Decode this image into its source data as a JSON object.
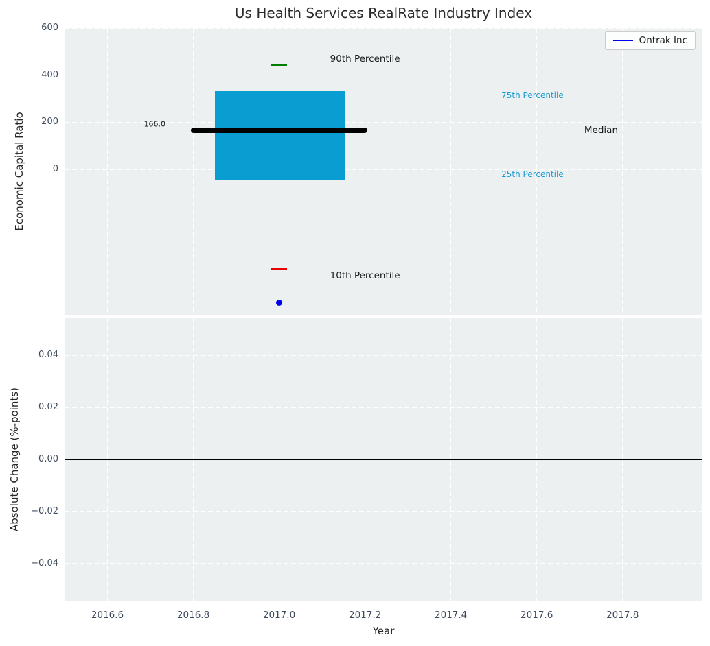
{
  "title": "Us Health Services RealRate Industry Index",
  "chart_data": {
    "type": "box",
    "title": "Us Health Services RealRate Industry Index",
    "xlabel": "Year",
    "background": "#ecf0f1",
    "grid": {
      "show": true,
      "color": "#ffffff",
      "style": "dashed"
    },
    "x_range": [
      2016.5,
      2017.986
    ],
    "xticks": [
      2016.6,
      2016.8,
      2017.0,
      2017.2,
      2017.4,
      2017.6,
      2017.8
    ],
    "xtick_labels": [
      "2016.6",
      "2016.8",
      "2017.0",
      "2017.2",
      "2017.4",
      "2017.6",
      "2017.8"
    ],
    "legend": {
      "position": "upper right",
      "entries": [
        {
          "label": "Ontrak Inc",
          "color": "#0000ee",
          "marker": "line"
        }
      ]
    },
    "panels": [
      {
        "name": "economic-capital-ratio",
        "ylabel": "Economic Capital Ratio",
        "ylim": [
          -617,
          600
        ],
        "yticks": [
          {
            "v": 0,
            "label": "0"
          },
          {
            "v": 200,
            "label": "200"
          },
          {
            "v": 400,
            "label": "400"
          },
          {
            "v": 600,
            "label": "600"
          }
        ],
        "boxplot": {
          "x": 2017.0,
          "p10": -422,
          "p25": -47,
          "median": 166.0,
          "p75": 333,
          "p90": 444,
          "box_x": [
            2016.85,
            2017.152
          ],
          "median_x": [
            2016.795,
            2017.205
          ],
          "cap_x": [
            2016.982,
            2017.018
          ],
          "box_color": "#099dd1",
          "median_color": "#000000",
          "whisker_color": "#4d4d4d",
          "p90_cap_color": "#007d00",
          "p10_cap_color": "#e80000",
          "median_label": "166.0"
        },
        "points": [
          {
            "series": "Ontrak Inc",
            "x": 2017.0,
            "y": -565,
            "color": "#0000ee"
          }
        ],
        "annotations": [
          {
            "text": "90th Percentile",
            "x": 2017.2,
            "y": 469,
            "color": "#1a1a1a",
            "size": 13.5
          },
          {
            "text": "10th Percentile",
            "x": 2017.2,
            "y": -452,
            "color": "#1a1a1a",
            "size": 13.5
          },
          {
            "text": "75th Percentile",
            "x": 2017.59,
            "y": 315,
            "color": "#1a9bce",
            "size": 12
          },
          {
            "text": "25th Percentile",
            "x": 2017.59,
            "y": -20,
            "color": "#1a9bce",
            "size": 12
          },
          {
            "text": "Median",
            "x": 2017.75,
            "y": 166,
            "color": "#1a1a1a",
            "size": 13.5
          },
          {
            "text": "166.0",
            "x": 2016.71,
            "y": 192,
            "color": "#111111",
            "size": 11
          }
        ]
      },
      {
        "name": "absolute-change",
        "ylabel": "Absolute Change (%-points)",
        "ylim": [
          -0.0545,
          0.0545
        ],
        "yticks": [
          {
            "v": 0.04,
            "label": "0.04"
          },
          {
            "v": 0.02,
            "label": "0.02"
          },
          {
            "v": 0.0,
            "label": "0.00"
          },
          {
            "v": -0.02,
            "label": "−0.02"
          },
          {
            "v": -0.04,
            "label": "−0.04"
          }
        ],
        "zero_line": {
          "y": 0.0,
          "color": "#000000"
        }
      }
    ]
  }
}
